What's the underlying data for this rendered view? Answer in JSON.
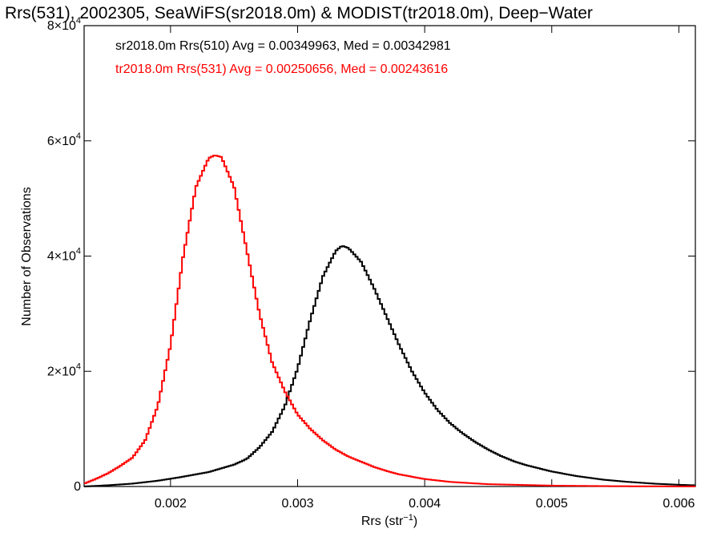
{
  "chart_data": {
    "type": "line",
    "title": "Rrs(531), 2002305, SeaWiFS(sr2018.0m) & MODIST(tr2018.0m), Deep−Water",
    "xlabel": "Rrs (str",
    "xlabel_sup": "−1",
    "xlabel_tail": ")",
    "ylabel": "Number of Observations",
    "xlim": [
      0.00132,
      0.00613
    ],
    "ylim": [
      0,
      80000
    ],
    "x_ticks": [
      {
        "value": 0.002,
        "label": "0.002"
      },
      {
        "value": 0.003,
        "label": "0.003"
      },
      {
        "value": 0.004,
        "label": "0.004"
      },
      {
        "value": 0.005,
        "label": "0.005"
      },
      {
        "value": 0.006,
        "label": "0.006"
      }
    ],
    "y_ticks": [
      {
        "value": 0,
        "mant": "0",
        "exp": ""
      },
      {
        "value": 20000,
        "mant": "2×10",
        "exp": "4"
      },
      {
        "value": 40000,
        "mant": "4×10",
        "exp": "4"
      },
      {
        "value": 60000,
        "mant": "6×10",
        "exp": "4"
      },
      {
        "value": 80000,
        "mant": "8×10",
        "exp": "4"
      }
    ],
    "legend_position": "top-left",
    "series": [
      {
        "name": "sr2018.0m Rrs(510) Avg = 0.00349963, Med = 0.00342981",
        "color": "#000000",
        "x": [
          0.00132,
          0.0015,
          0.0017,
          0.0019,
          0.0021,
          0.0023,
          0.0025,
          0.0026,
          0.0027,
          0.0028,
          0.0029,
          0.003,
          0.0031,
          0.0032,
          0.0033,
          0.00335,
          0.0034,
          0.0035,
          0.0036,
          0.0037,
          0.0038,
          0.0039,
          0.004,
          0.0041,
          0.0042,
          0.0043,
          0.0044,
          0.0045,
          0.0046,
          0.0047,
          0.0048,
          0.005,
          0.0052,
          0.0054,
          0.0056,
          0.0058,
          0.006,
          0.00613
        ],
        "y": [
          0,
          200,
          500,
          1000,
          1700,
          2500,
          3800,
          4800,
          6800,
          9500,
          14000,
          20500,
          29000,
          36500,
          40900,
          41800,
          41400,
          39000,
          34500,
          29500,
          24500,
          20000,
          16300,
          13300,
          11000,
          9200,
          7700,
          6400,
          5300,
          4400,
          3700,
          2600,
          1800,
          1200,
          800,
          500,
          300,
          200
        ]
      },
      {
        "name": "tr2018.0m Rrs(531) Avg = 0.00250656, Med = 0.00243616",
        "color": "#ff0000",
        "x": [
          0.00132,
          0.0014,
          0.0015,
          0.0016,
          0.0017,
          0.0018,
          0.0019,
          0.002,
          0.0021,
          0.0022,
          0.0023,
          0.00235,
          0.0024,
          0.0025,
          0.0026,
          0.0027,
          0.0028,
          0.0029,
          0.003,
          0.0031,
          0.0032,
          0.0033,
          0.0034,
          0.0035,
          0.0036,
          0.0037,
          0.0038,
          0.004,
          0.0042,
          0.0045,
          0.005,
          0.0055,
          0.006,
          0.00613
        ],
        "y": [
          500,
          1200,
          2200,
          3500,
          5000,
          8000,
          14000,
          24500,
          40000,
          52000,
          57000,
          57500,
          57200,
          52000,
          41000,
          30000,
          21500,
          16500,
          12500,
          10000,
          8000,
          6400,
          5200,
          4300,
          3400,
          2700,
          2100,
          1300,
          800,
          400,
          150,
          50,
          20,
          10
        ]
      }
    ]
  }
}
